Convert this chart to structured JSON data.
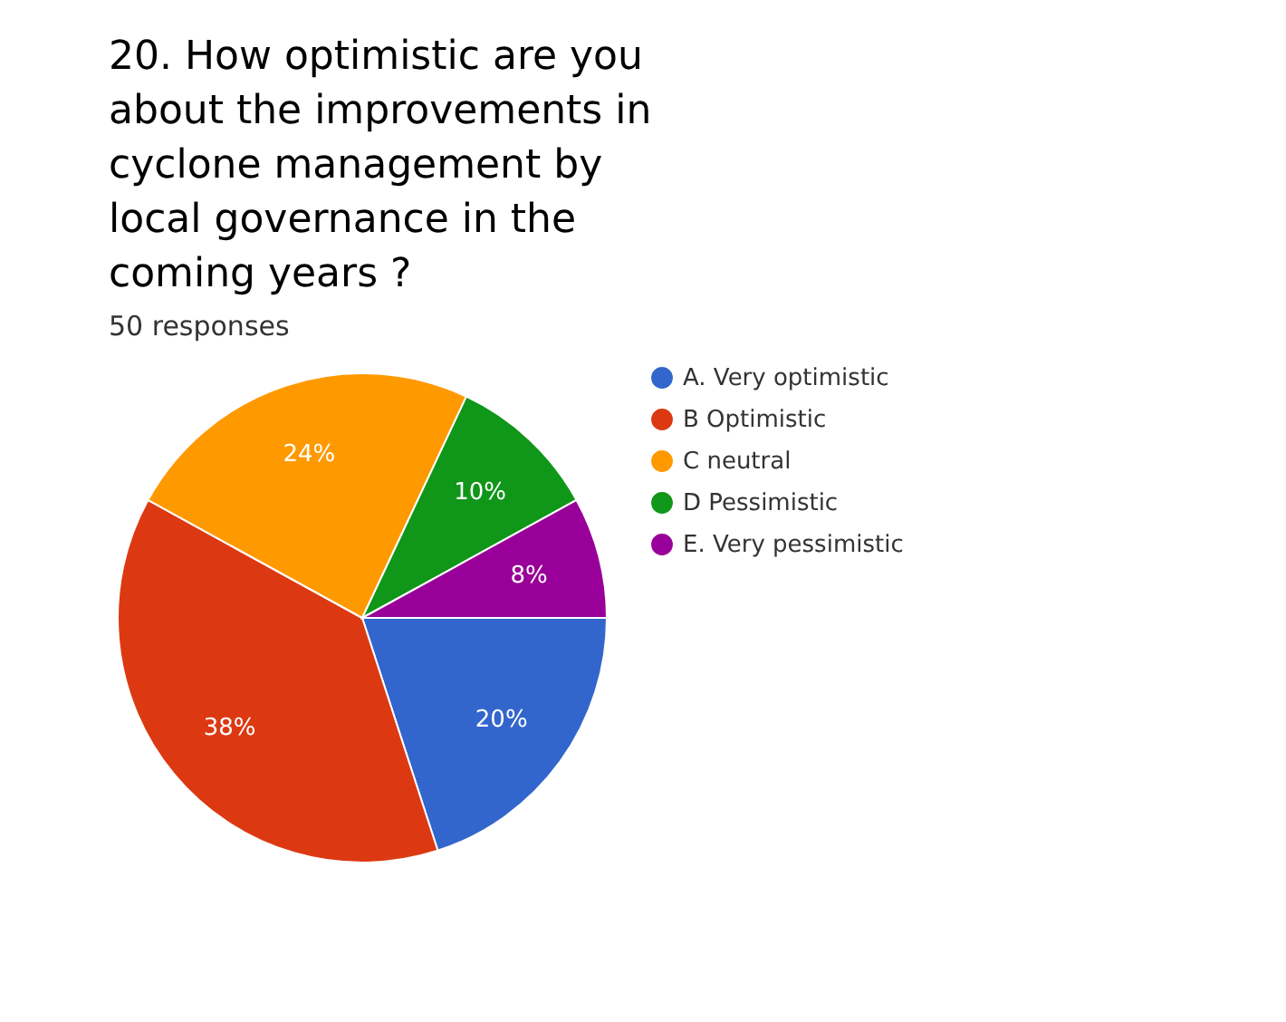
{
  "chart_data": {
    "type": "pie",
    "title": "20. How optimistic are you about the improvements in cyclone management by local governance in the coming years ?",
    "subtitle": "50 responses",
    "categories": [
      "A. Very optimistic",
      "B Optimistic",
      "C neutral",
      "D Pessimistic",
      "E. Very pessimistic"
    ],
    "values": [
      20,
      38,
      24,
      10,
      8
    ],
    "colors": [
      "#3366cc",
      "#dc3912",
      "#ff9900",
      "#109618",
      "#990099"
    ],
    "value_labels": [
      "20%",
      "38%",
      "24%",
      "10%",
      "8%"
    ],
    "legend": "right"
  }
}
